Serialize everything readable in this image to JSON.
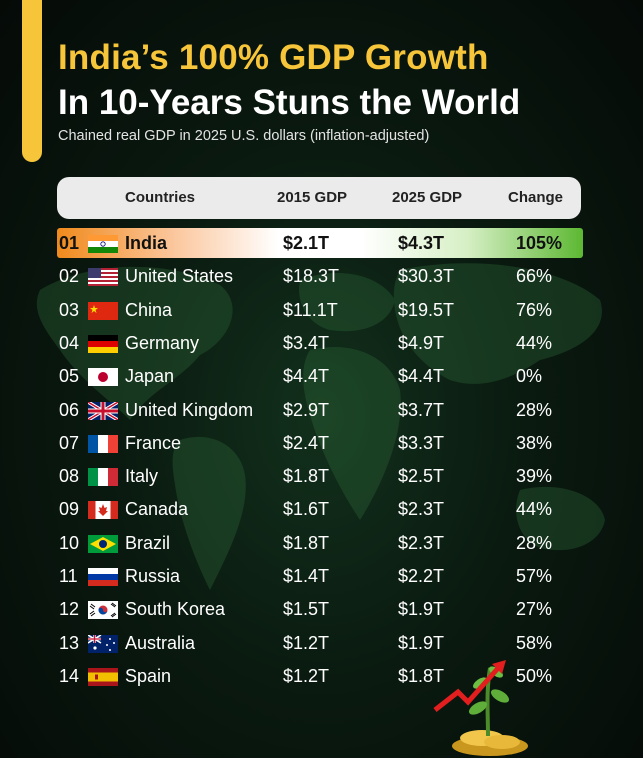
{
  "title_line1": "India’s 100% GDP Growth",
  "title_line2": "In 10-Years Stuns the World",
  "subtitle": "Chained real GDP in 2025 U.S. dollars (inflation-adjusted)",
  "columns": {
    "countries": "Countries",
    "gdp2015": "2015 GDP",
    "gdp2025": "2025 GDP",
    "change": "Change"
  },
  "rows": [
    {
      "rank": "01",
      "flag": "india-flag-icon",
      "country": "India",
      "gdp2015": "$2.1T",
      "gdp2025": "$4.3T",
      "change": "105%"
    },
    {
      "rank": "02",
      "flag": "usa-flag-icon",
      "country": "United States",
      "gdp2015": "$18.3T",
      "gdp2025": "$30.3T",
      "change": "66%"
    },
    {
      "rank": "03",
      "flag": "china-flag-icon",
      "country": "China",
      "gdp2015": "$11.1T",
      "gdp2025": "$19.5T",
      "change": "76%"
    },
    {
      "rank": "04",
      "flag": "germany-flag-icon",
      "country": "Germany",
      "gdp2015": "$3.4T",
      "gdp2025": "$4.9T",
      "change": "44%"
    },
    {
      "rank": "05",
      "flag": "japan-flag-icon",
      "country": "Japan",
      "gdp2015": "$4.4T",
      "gdp2025": "$4.4T",
      "change": "0%"
    },
    {
      "rank": "06",
      "flag": "uk-flag-icon",
      "country": "United Kingdom",
      "gdp2015": "$2.9T",
      "gdp2025": "$3.7T",
      "change": "28%"
    },
    {
      "rank": "07",
      "flag": "france-flag-icon",
      "country": "France",
      "gdp2015": "$2.4T",
      "gdp2025": "$3.3T",
      "change": "38%"
    },
    {
      "rank": "08",
      "flag": "italy-flag-icon",
      "country": "Italy",
      "gdp2015": "$1.8T",
      "gdp2025": "$2.5T",
      "change": "39%"
    },
    {
      "rank": "09",
      "flag": "canada-flag-icon",
      "country": "Canada",
      "gdp2015": "$1.6T",
      "gdp2025": "$2.3T",
      "change": "44%"
    },
    {
      "rank": "10",
      "flag": "brazil-flag-icon",
      "country": "Brazil",
      "gdp2015": "$1.8T",
      "gdp2025": "$2.3T",
      "change": "28%"
    },
    {
      "rank": "11",
      "flag": "russia-flag-icon",
      "country": "Russia",
      "gdp2015": "$1.4T",
      "gdp2025": "$2.2T",
      "change": "57%"
    },
    {
      "rank": "12",
      "flag": "south-korea-flag-icon",
      "country": "South Korea",
      "gdp2015": "$1.5T",
      "gdp2025": "$1.9T",
      "change": "27%"
    },
    {
      "rank": "13",
      "flag": "australia-flag-icon",
      "country": "Australia",
      "gdp2015": "$1.2T",
      "gdp2025": "$1.9T",
      "change": "58%"
    },
    {
      "rank": "14",
      "flag": "spain-flag-icon",
      "country": "Spain",
      "gdp2015": "$1.2T",
      "gdp2025": "$1.8T",
      "change": "50%"
    }
  ],
  "colors": {
    "accent": "#f7c53a",
    "highlight_left": "#f08a1c",
    "highlight_right": "#5cb832"
  }
}
